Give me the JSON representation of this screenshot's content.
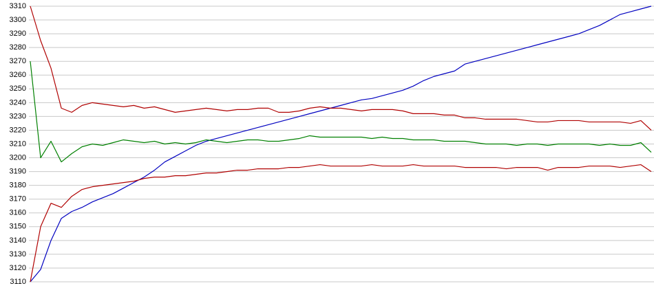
{
  "chart_data": {
    "type": "line",
    "ylim": [
      3110,
      3310
    ],
    "yticks": [
      3110,
      3120,
      3130,
      3140,
      3150,
      3160,
      3170,
      3180,
      3190,
      3200,
      3210,
      3220,
      3230,
      3240,
      3250,
      3260,
      3270,
      3280,
      3290,
      3300,
      3310
    ],
    "grid": true,
    "series": [
      {
        "color": "#0000c0",
        "values": [
          3110,
          3119,
          3140,
          3156,
          3161,
          3164,
          3168,
          3171,
          3174,
          3178,
          3182,
          3186,
          3191,
          3197,
          3201,
          3205,
          3209,
          3212,
          3214,
          3216,
          3218,
          3220,
          3222,
          3224,
          3226,
          3228,
          3230,
          3232,
          3234,
          3236,
          3238,
          3240,
          3242,
          3243,
          3245,
          3247,
          3249,
          3252,
          3256,
          3259,
          3261,
          3263,
          3268,
          3270,
          3272,
          3274,
          3276,
          3278,
          3280,
          3282,
          3284,
          3286,
          3288,
          3290,
          3293,
          3296,
          3300,
          3304,
          3306,
          3308,
          3310
        ]
      },
      {
        "color": "#b00000",
        "values": [
          3310,
          3285,
          3265,
          3236,
          3233,
          3238,
          3240,
          3239,
          3238,
          3237,
          3238,
          3236,
          3237,
          3235,
          3233,
          3234,
          3235,
          3236,
          3235,
          3234,
          3235,
          3235,
          3236,
          3236,
          3233,
          3233,
          3234,
          3236,
          3237,
          3236,
          3236,
          3235,
          3234,
          3235,
          3235,
          3235,
          3234,
          3232,
          3232,
          3232,
          3231,
          3231,
          3229,
          3229,
          3228,
          3228,
          3228,
          3228,
          3227,
          3226,
          3226,
          3227,
          3227,
          3227,
          3226,
          3226,
          3226,
          3226,
          3225,
          3227,
          3220
        ]
      },
      {
        "color": "#008000",
        "values": [
          3270,
          3200,
          3212,
          3197,
          3203,
          3208,
          3210,
          3209,
          3211,
          3213,
          3212,
          3211,
          3212,
          3210,
          3211,
          3210,
          3211,
          3213,
          3212,
          3211,
          3212,
          3213,
          3213,
          3212,
          3212,
          3213,
          3214,
          3216,
          3215,
          3215,
          3215,
          3215,
          3215,
          3214,
          3215,
          3214,
          3214,
          3213,
          3213,
          3213,
          3212,
          3212,
          3212,
          3211,
          3210,
          3210,
          3210,
          3209,
          3210,
          3210,
          3209,
          3210,
          3210,
          3210,
          3210,
          3209,
          3210,
          3209,
          3209,
          3211,
          3204
        ]
      },
      {
        "color": "#b00000",
        "values": [
          3110,
          3150,
          3167,
          3164,
          3172,
          3177,
          3179,
          3180,
          3181,
          3182,
          3183,
          3185,
          3186,
          3186,
          3187,
          3187,
          3188,
          3189,
          3189,
          3190,
          3191,
          3191,
          3192,
          3192,
          3192,
          3193,
          3193,
          3194,
          3195,
          3194,
          3194,
          3194,
          3194,
          3195,
          3194,
          3194,
          3194,
          3195,
          3194,
          3194,
          3194,
          3194,
          3193,
          3193,
          3193,
          3193,
          3192,
          3193,
          3193,
          3193,
          3191,
          3193,
          3193,
          3193,
          3194,
          3194,
          3194,
          3193,
          3194,
          3195,
          3190
        ]
      }
    ]
  }
}
